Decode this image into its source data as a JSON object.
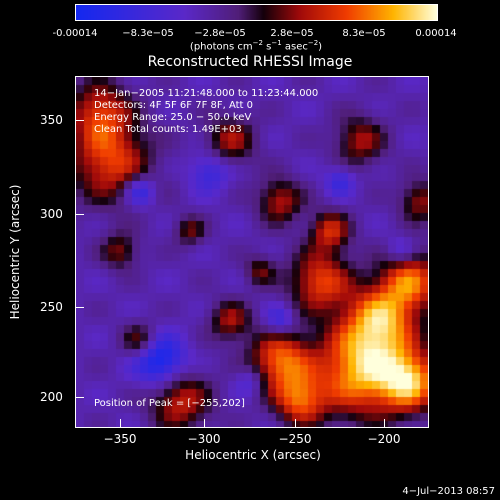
{
  "colorbar": {
    "ticks": [
      "-0.00014",
      "−8.3e−05",
      "−2.8e−05",
      "2.8e−05",
      "8.3e−05",
      "0.00014"
    ],
    "units": "(photons cm",
    "units_exp1": "−2",
    "units_mid": " s",
    "units_exp2": "−1",
    "units_mid2": " asec",
    "units_exp3": "−2",
    "units_end": ")"
  },
  "plot": {
    "title": "Reconstructed RHESSI Image",
    "info_lines": [
      "14−Jan−2005 11:21:48.000 to 11:23:44.000",
      "Detectors: 4F 5F 6F 7F 8F, Att 0",
      "Energy Range: 25.0 − 50.0 keV",
      "Clean    Total counts: 1.49E+03"
    ],
    "peak_label": "Position of Peak = [−255,202]",
    "xlabel": "Heliocentric X (arcsec)",
    "ylabel": "Heliocentric Y (arcsec)",
    "xticks": [
      "−350",
      "−300",
      "−250",
      "−200"
    ],
    "yticks": [
      "350",
      "300",
      "250",
      "200"
    ]
  },
  "timestamp": "4−Jul−2013 08:57"
}
